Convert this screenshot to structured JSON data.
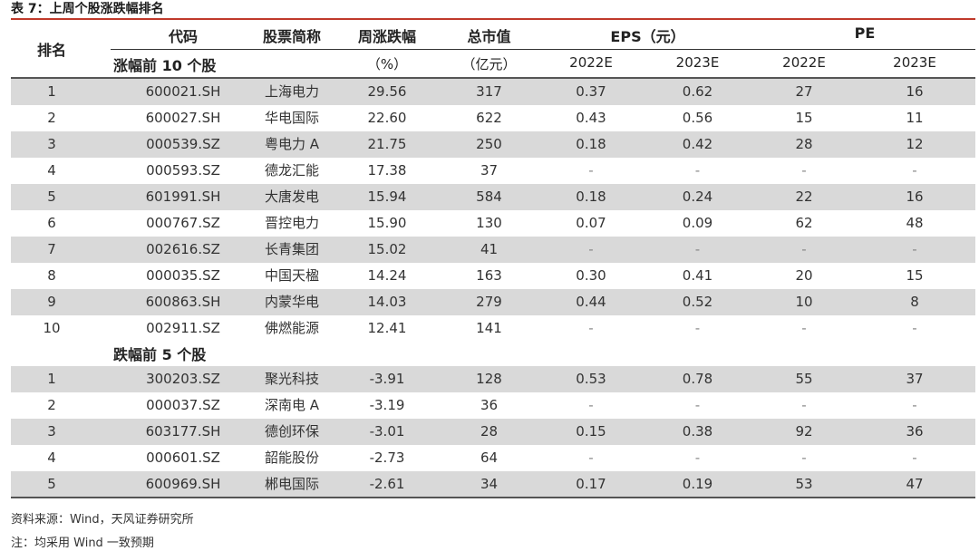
{
  "caption": "表 7：上周个股涨跌幅排名",
  "headers": {
    "rank": "排名",
    "code": "代码",
    "name": "股票简称",
    "change": "周涨跌幅",
    "change_unit": "（%）",
    "mktcap": "总市值",
    "mktcap_unit": "（亿元）",
    "eps": "EPS（元）",
    "pe": "PE",
    "year1": "2022E",
    "year2": "2023E"
  },
  "gainers_label": "涨幅前 10 个股",
  "losers_label": "跌幅前 5 个股",
  "gainers": [
    [
      "1",
      "600021.SH",
      "上海电力",
      "29.56",
      "317",
      "0.37",
      "0.62",
      "27",
      "16"
    ],
    [
      "2",
      "600027.SH",
      "华电国际",
      "22.60",
      "622",
      "0.43",
      "0.56",
      "15",
      "11"
    ],
    [
      "3",
      "000539.SZ",
      "粤电力 A",
      "21.75",
      "250",
      "0.18",
      "0.42",
      "28",
      "12"
    ],
    [
      "4",
      "000593.SZ",
      "德龙汇能",
      "17.38",
      "37",
      "-",
      "-",
      "-",
      "-"
    ],
    [
      "5",
      "601991.SH",
      "大唐发电",
      "15.94",
      "584",
      "0.18",
      "0.24",
      "22",
      "16"
    ],
    [
      "6",
      "000767.SZ",
      "晋控电力",
      "15.90",
      "130",
      "0.07",
      "0.09",
      "62",
      "48"
    ],
    [
      "7",
      "002616.SZ",
      "长青集团",
      "15.02",
      "41",
      "-",
      "-",
      "-",
      "-"
    ],
    [
      "8",
      "000035.SZ",
      "中国天楹",
      "14.24",
      "163",
      "0.30",
      "0.41",
      "20",
      "15"
    ],
    [
      "9",
      "600863.SH",
      "内蒙华电",
      "14.03",
      "279",
      "0.44",
      "0.52",
      "10",
      "8"
    ],
    [
      "10",
      "002911.SZ",
      "佛燃能源",
      "12.41",
      "141",
      "-",
      "-",
      "-",
      "-"
    ]
  ],
  "losers": [
    [
      "1",
      "300203.SZ",
      "聚光科技",
      "-3.91",
      "128",
      "0.53",
      "0.78",
      "55",
      "37"
    ],
    [
      "2",
      "000037.SZ",
      "深南电 A",
      "-3.19",
      "36",
      "-",
      "-",
      "-",
      "-"
    ],
    [
      "3",
      "603177.SH",
      "德创环保",
      "-3.01",
      "28",
      "0.15",
      "0.38",
      "92",
      "36"
    ],
    [
      "4",
      "000601.SZ",
      "韶能股份",
      "-2.73",
      "64",
      "-",
      "-",
      "-",
      "-"
    ],
    [
      "5",
      "600969.SH",
      "郴电国际",
      "-2.61",
      "34",
      "0.17",
      "0.19",
      "53",
      "47"
    ]
  ],
  "source": "资料来源：Wind，天风证券研究所",
  "note": "注：均采用 Wind 一致预期"
}
